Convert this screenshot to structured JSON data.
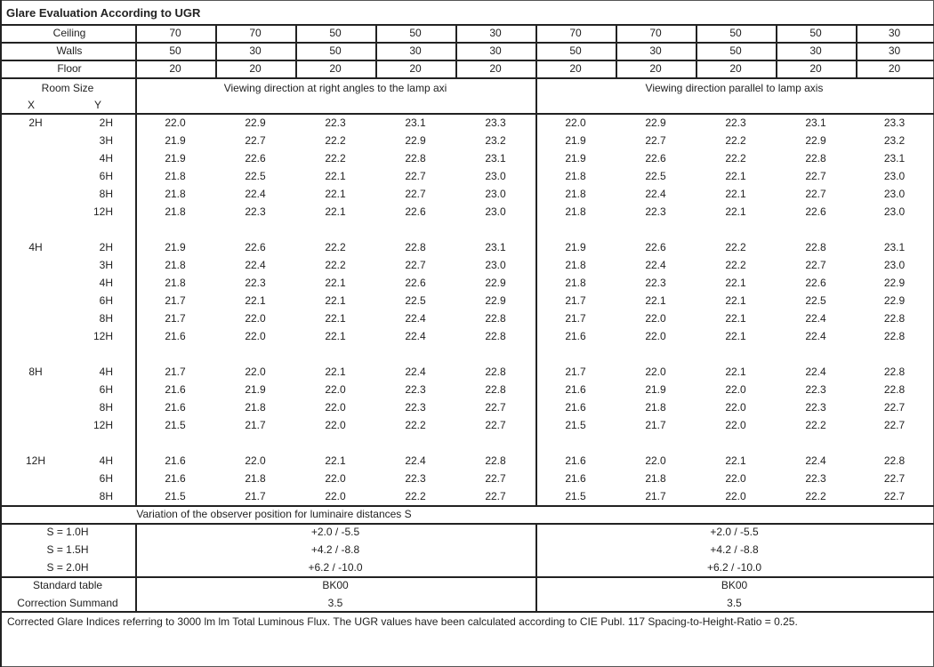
{
  "title": "Glare Evaluation According to UGR",
  "reflectances": [
    {
      "label": "Ceiling",
      "values": [
        "70",
        "70",
        "50",
        "50",
        "30",
        "70",
        "70",
        "50",
        "50",
        "30"
      ]
    },
    {
      "label": "Walls",
      "values": [
        "50",
        "30",
        "50",
        "30",
        "30",
        "50",
        "30",
        "50",
        "30",
        "30"
      ]
    },
    {
      "label": "Floor",
      "values": [
        "20",
        "20",
        "20",
        "20",
        "20",
        "20",
        "20",
        "20",
        "20",
        "20"
      ]
    }
  ],
  "room_size_label": "Room Size",
  "x_label": "X",
  "y_label": "Y",
  "direction_right_angles": "Viewing direction at right angles to the lamp axi",
  "direction_parallel": "Viewing direction parallel to lamp axis",
  "groups": [
    {
      "x": "2H",
      "rows": [
        {
          "y": "2H",
          "right": [
            "22.0",
            "22.9",
            "22.3",
            "23.1",
            "23.3"
          ],
          "parallel": [
            "22.0",
            "22.9",
            "22.3",
            "23.1",
            "23.3"
          ]
        },
        {
          "y": "3H",
          "right": [
            "21.9",
            "22.7",
            "22.2",
            "22.9",
            "23.2"
          ],
          "parallel": [
            "21.9",
            "22.7",
            "22.2",
            "22.9",
            "23.2"
          ]
        },
        {
          "y": "4H",
          "right": [
            "21.9",
            "22.6",
            "22.2",
            "22.8",
            "23.1"
          ],
          "parallel": [
            "21.9",
            "22.6",
            "22.2",
            "22.8",
            "23.1"
          ]
        },
        {
          "y": "6H",
          "right": [
            "21.8",
            "22.5",
            "22.1",
            "22.7",
            "23.0"
          ],
          "parallel": [
            "21.8",
            "22.5",
            "22.1",
            "22.7",
            "23.0"
          ]
        },
        {
          "y": "8H",
          "right": [
            "21.8",
            "22.4",
            "22.1",
            "22.7",
            "23.0"
          ],
          "parallel": [
            "21.8",
            "22.4",
            "22.1",
            "22.7",
            "23.0"
          ]
        },
        {
          "y": "12H",
          "right": [
            "21.8",
            "22.3",
            "22.1",
            "22.6",
            "23.0"
          ],
          "parallel": [
            "21.8",
            "22.3",
            "22.1",
            "22.6",
            "23.0"
          ]
        }
      ]
    },
    {
      "x": "4H",
      "rows": [
        {
          "y": "2H",
          "right": [
            "21.9",
            "22.6",
            "22.2",
            "22.8",
            "23.1"
          ],
          "parallel": [
            "21.9",
            "22.6",
            "22.2",
            "22.8",
            "23.1"
          ]
        },
        {
          "y": "3H",
          "right": [
            "21.8",
            "22.4",
            "22.2",
            "22.7",
            "23.0"
          ],
          "parallel": [
            "21.8",
            "22.4",
            "22.2",
            "22.7",
            "23.0"
          ]
        },
        {
          "y": "4H",
          "right": [
            "21.8",
            "22.3",
            "22.1",
            "22.6",
            "22.9"
          ],
          "parallel": [
            "21.8",
            "22.3",
            "22.1",
            "22.6",
            "22.9"
          ]
        },
        {
          "y": "6H",
          "right": [
            "21.7",
            "22.1",
            "22.1",
            "22.5",
            "22.9"
          ],
          "parallel": [
            "21.7",
            "22.1",
            "22.1",
            "22.5",
            "22.9"
          ]
        },
        {
          "y": "8H",
          "right": [
            "21.7",
            "22.0",
            "22.1",
            "22.4",
            "22.8"
          ],
          "parallel": [
            "21.7",
            "22.0",
            "22.1",
            "22.4",
            "22.8"
          ]
        },
        {
          "y": "12H",
          "right": [
            "21.6",
            "22.0",
            "22.1",
            "22.4",
            "22.8"
          ],
          "parallel": [
            "21.6",
            "22.0",
            "22.1",
            "22.4",
            "22.8"
          ]
        }
      ]
    },
    {
      "x": "8H",
      "rows": [
        {
          "y": "4H",
          "right": [
            "21.7",
            "22.0",
            "22.1",
            "22.4",
            "22.8"
          ],
          "parallel": [
            "21.7",
            "22.0",
            "22.1",
            "22.4",
            "22.8"
          ]
        },
        {
          "y": "6H",
          "right": [
            "21.6",
            "21.9",
            "22.0",
            "22.3",
            "22.8"
          ],
          "parallel": [
            "21.6",
            "21.9",
            "22.0",
            "22.3",
            "22.8"
          ]
        },
        {
          "y": "8H",
          "right": [
            "21.6",
            "21.8",
            "22.0",
            "22.3",
            "22.7"
          ],
          "parallel": [
            "21.6",
            "21.8",
            "22.0",
            "22.3",
            "22.7"
          ]
        },
        {
          "y": "12H",
          "right": [
            "21.5",
            "21.7",
            "22.0",
            "22.2",
            "22.7"
          ],
          "parallel": [
            "21.5",
            "21.7",
            "22.0",
            "22.2",
            "22.7"
          ]
        }
      ]
    },
    {
      "x": "12H",
      "rows": [
        {
          "y": "4H",
          "right": [
            "21.6",
            "22.0",
            "22.1",
            "22.4",
            "22.8"
          ],
          "parallel": [
            "21.6",
            "22.0",
            "22.1",
            "22.4",
            "22.8"
          ]
        },
        {
          "y": "6H",
          "right": [
            "21.6",
            "21.8",
            "22.0",
            "22.3",
            "22.7"
          ],
          "parallel": [
            "21.6",
            "21.8",
            "22.0",
            "22.3",
            "22.7"
          ]
        },
        {
          "y": "8H",
          "right": [
            "21.5",
            "21.7",
            "22.0",
            "22.2",
            "22.7"
          ],
          "parallel": [
            "21.5",
            "21.7",
            "22.0",
            "22.2",
            "22.7"
          ]
        }
      ]
    }
  ],
  "variation_label": "Variation of the observer position for luminaire distances S",
  "variations": [
    {
      "label": "S = 1.0H",
      "right": "+2.0 / -5.5",
      "parallel": "+2.0 / -5.5"
    },
    {
      "label": "S = 1.5H",
      "right": "+4.2 / -8.8",
      "parallel": "+4.2 / -8.8"
    },
    {
      "label": "S = 2.0H",
      "right": "+6.2 / -10.0",
      "parallel": "+6.2 / -10.0"
    }
  ],
  "standard_table": {
    "label": "Standard table",
    "right": "BK00",
    "parallel": "BK00"
  },
  "correction_summand": {
    "label": "Correction Summand",
    "right": "3.5",
    "parallel": "3.5"
  },
  "footer": "Corrected Glare Indices referring to 3000 lm lm Total Luminous Flux. The UGR values have been calculated according to CIE Publ. 117    Spacing-to-Height-Ratio = 0.25."
}
